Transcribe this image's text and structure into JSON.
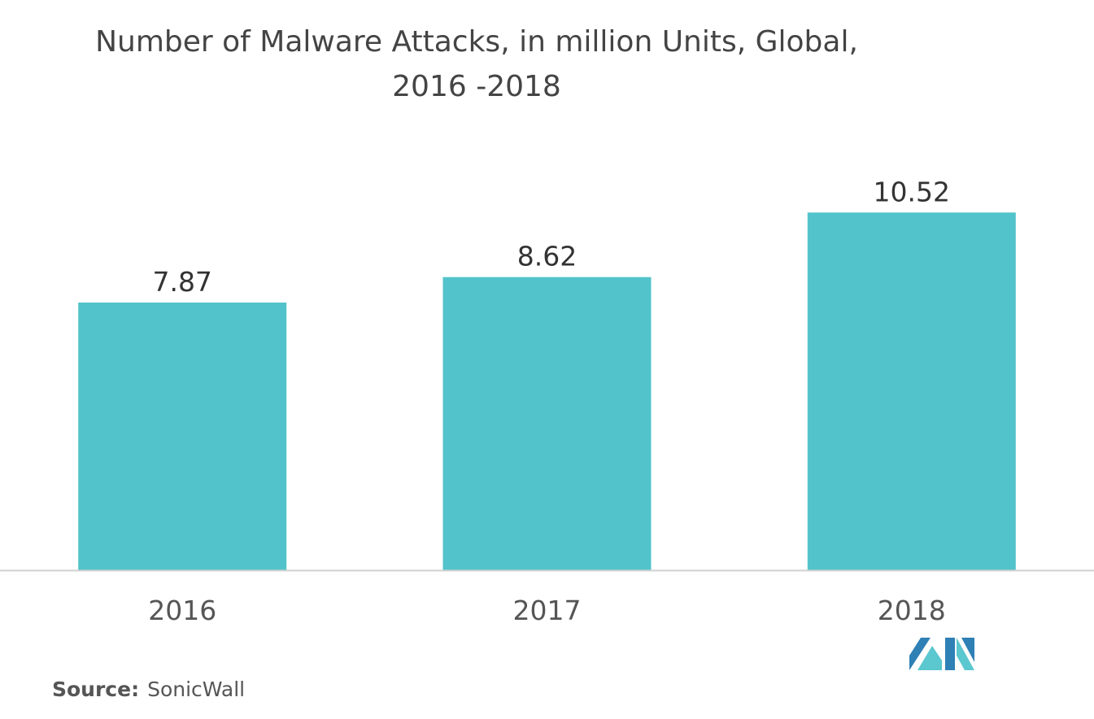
{
  "chart_data": {
    "type": "bar",
    "title": "Number of Malware Attacks, in million Units, Global,",
    "subtitle": "2016 -2018",
    "categories": [
      "2016",
      "2017",
      "2018"
    ],
    "values": [
      7.87,
      8.62,
      10.52
    ],
    "value_labels": [
      "7.87",
      "8.62",
      "10.52"
    ],
    "xlabel": "",
    "ylabel": "",
    "ylim": [
      0,
      13.9
    ],
    "grid": false,
    "legend": "none",
    "bar_color": "#52C3CA",
    "axis_color": "#D0D0D0"
  },
  "source": {
    "label": "Source:",
    "text": "SonicWall"
  },
  "logo": {
    "icon": "mordor-intelligence-logo",
    "colors": [
      "#2E80B5",
      "#5BC7CF"
    ]
  }
}
